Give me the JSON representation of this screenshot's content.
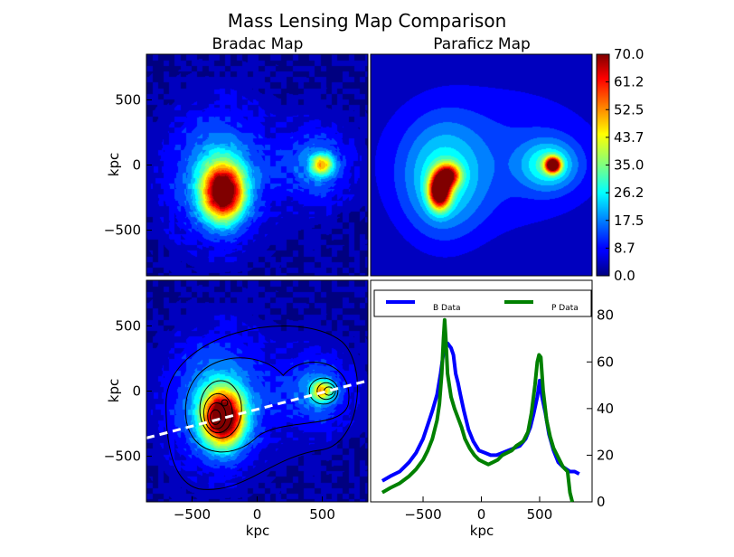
{
  "chart_data": {
    "title": "Mass Lensing Map Comparison",
    "panels": [
      {
        "id": "bradac",
        "type": "heatmap",
        "title": "Bradac Map",
        "xlabel": "",
        "ylabel": "kpc",
        "xlim": [
          -850,
          850
        ],
        "ylim": [
          -850,
          850
        ],
        "yticks": [
          {
            "v": 500,
            "label": "500"
          },
          {
            "v": 0,
            "label": "0"
          },
          {
            "v": -500,
            "label": "−500"
          }
        ],
        "xticks": [],
        "peaks": [
          {
            "x": -260,
            "y": -210,
            "amp": 66,
            "sx": 110,
            "sy": 150
          },
          {
            "x": -300,
            "y": -80,
            "amp": 20,
            "sx": 260,
            "sy": 340
          },
          {
            "x": 500,
            "y": 0,
            "amp": 36,
            "sx": 60,
            "sy": 60
          },
          {
            "x": 450,
            "y": 0,
            "amp": 14,
            "sx": 200,
            "sy": 220
          }
        ]
      },
      {
        "id": "paraficz",
        "type": "heatmap",
        "title": "Paraficz Map",
        "xlabel": "",
        "ylabel": "",
        "xlim": [
          -850,
          850
        ],
        "ylim": [
          -850,
          850
        ],
        "peaks": [
          {
            "x": -320,
            "y": -200,
            "amp": 70,
            "sx": 55,
            "sy": 90
          },
          {
            "x": -250,
            "y": -80,
            "amp": 45,
            "sx": 60,
            "sy": 60
          },
          {
            "x": -300,
            "y": -120,
            "amp": 20,
            "sx": 210,
            "sy": 300
          },
          {
            "x": 550,
            "y": 0,
            "amp": 66,
            "sx": 40,
            "sy": 40
          },
          {
            "x": 520,
            "y": 0,
            "amp": 22,
            "sx": 150,
            "sy": 130
          },
          {
            "x": 100,
            "y": 50,
            "amp": 10,
            "sx": 650,
            "sy": 420
          }
        ]
      },
      {
        "id": "bradac-contours",
        "type": "heatmap",
        "title": "",
        "xlabel": "kpc",
        "ylabel": "kpc",
        "xlim": [
          -850,
          850
        ],
        "ylim": [
          -850,
          850
        ],
        "xticks": [
          {
            "v": -500,
            "label": "−500"
          },
          {
            "v": 0,
            "label": "0"
          },
          {
            "v": 500,
            "label": "500"
          }
        ],
        "yticks": [
          {
            "v": 500,
            "label": "500"
          },
          {
            "v": 0,
            "label": "0"
          },
          {
            "v": -500,
            "label": "−500"
          }
        ],
        "cut_line": {
          "x": [
            -850,
            850
          ],
          "y": [
            -360,
            80
          ]
        }
      }
    ],
    "colorbar": {
      "min": 0.0,
      "max": 70.0,
      "tick_labels": [
        "70.0",
        "61.2",
        "52.5",
        "43.7",
        "35.0",
        "26.2",
        "17.5",
        "8.7",
        "0.0"
      ]
    },
    "profile": {
      "type": "line",
      "xlabel": "kpc",
      "ylabel": "",
      "xlim": [
        -950,
        950
      ],
      "ylim": [
        0,
        95
      ],
      "xticks": [
        {
          "v": -500,
          "label": "−500"
        },
        {
          "v": 0,
          "label": "0"
        },
        {
          "v": 500,
          "label": "500"
        }
      ],
      "yticks": [
        {
          "v": 0,
          "label": "0"
        },
        {
          "v": 20,
          "label": "20"
        },
        {
          "v": 40,
          "label": "40"
        },
        {
          "v": 60,
          "label": "60"
        },
        {
          "v": 80,
          "label": "80"
        }
      ],
      "legend": "top",
      "series": [
        {
          "name": "B Data",
          "color": "#0000ff",
          "x": [
            -850,
            -780,
            -700,
            -620,
            -560,
            -500,
            -460,
            -420,
            -380,
            -350,
            -330,
            -310,
            -290,
            -260,
            -240,
            -220,
            -200,
            -180,
            -150,
            -110,
            -70,
            -20,
            30,
            80,
            130,
            180,
            230,
            280,
            330,
            380,
            420,
            450,
            480,
            500,
            520,
            550,
            580,
            620,
            660,
            700,
            730,
            760,
            800,
            840
          ],
          "y": [
            9,
            11,
            13,
            17,
            21,
            27,
            33,
            39,
            46,
            55,
            62,
            68,
            68,
            66,
            63,
            55,
            51,
            46,
            39,
            31,
            26,
            22,
            21,
            20,
            20,
            21,
            22,
            23,
            24,
            27,
            32,
            38,
            45,
            52,
            45,
            38,
            29,
            22,
            17,
            15,
            14,
            13,
            13,
            12
          ]
        },
        {
          "name": "P Data",
          "color": "#008000",
          "x": [
            -850,
            -780,
            -700,
            -620,
            -560,
            -500,
            -460,
            -420,
            -380,
            -360,
            -340,
            -325,
            -315,
            -305,
            -290,
            -260,
            -230,
            -200,
            -170,
            -140,
            -100,
            -60,
            -20,
            20,
            60,
            100,
            140,
            180,
            220,
            260,
            300,
            330,
            360,
            400,
            430,
            460,
            480,
            495,
            510,
            530,
            560,
            590,
            620,
            650,
            680,
            700,
            720,
            740,
            760,
            780
          ],
          "y": [
            4,
            6,
            8,
            11,
            14,
            18,
            22,
            27,
            35,
            42,
            55,
            70,
            78,
            70,
            55,
            45,
            40,
            36,
            32,
            27,
            23,
            20,
            18,
            17,
            16,
            17,
            18,
            20,
            21,
            22,
            24,
            25,
            26,
            30,
            38,
            50,
            60,
            63,
            62,
            48,
            35,
            28,
            23,
            20,
            17,
            15,
            14,
            13,
            4,
            0
          ]
        }
      ]
    }
  }
}
